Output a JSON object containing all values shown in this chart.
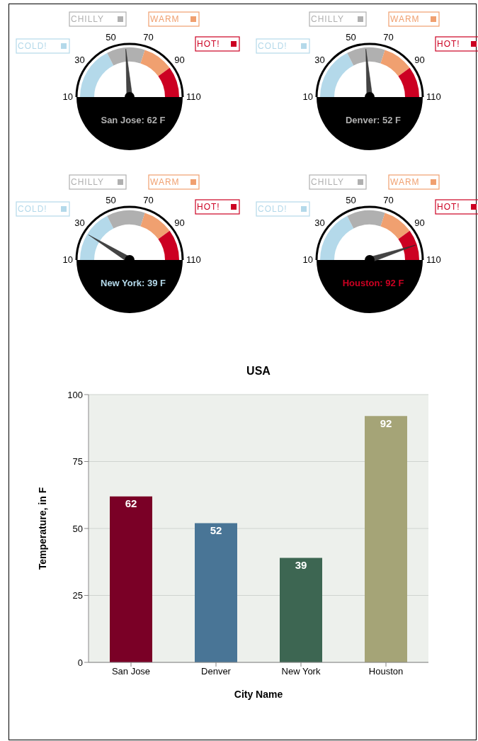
{
  "chart_data": [
    {
      "type": "donut",
      "title": "San Jose: 62 F",
      "categories": [
        "COLD!",
        "CHILLY",
        "WARM",
        "HOT!"
      ],
      "values": [
        35,
        25,
        20,
        20
      ],
      "colors": [
        "#b4d9ea",
        "#b0b0b0",
        "#f0a070",
        "#cc0022"
      ],
      "needle": "CHILLY",
      "legend": "top",
      "annotations": [
        "10",
        "30",
        "50",
        "70",
        "90",
        "110"
      ]
    },
    {
      "type": "donut",
      "title": "Denver: 52 F",
      "categories": [
        "COLD!",
        "CHILLY",
        "WARM",
        "HOT!"
      ],
      "values": [
        35,
        25,
        20,
        20
      ],
      "colors": [
        "#b4d9ea",
        "#b0b0b0",
        "#f0a070",
        "#cc0022"
      ],
      "needle": "CHILLY",
      "legend": "top",
      "annotations": [
        "10",
        "30",
        "50",
        "70",
        "90",
        "110"
      ]
    },
    {
      "type": "donut",
      "title": "New York: 39 F",
      "categories": [
        "COLD!",
        "CHILLY",
        "WARM",
        "HOT!"
      ],
      "values": [
        35,
        25,
        20,
        20
      ],
      "colors": [
        "#b4d9ea",
        "#b0b0b0",
        "#f0a070",
        "#cc0022"
      ],
      "needle": "COLD!",
      "legend": "top",
      "annotations": [
        "10",
        "30",
        "50",
        "70",
        "90",
        "110"
      ]
    },
    {
      "type": "donut",
      "title": "Houston: 92 F",
      "categories": [
        "COLD!",
        "CHILLY",
        "WARM",
        "HOT!"
      ],
      "values": [
        35,
        25,
        20,
        20
      ],
      "colors": [
        "#b4d9ea",
        "#b0b0b0",
        "#f0a070",
        "#cc0022"
      ],
      "needle": "HOT!",
      "legend": "top",
      "annotations": [
        "10",
        "30",
        "50",
        "70",
        "90",
        "110"
      ]
    },
    {
      "type": "bar",
      "title": "USA",
      "xlabel": "City Name",
      "ylabel": "Temperature, in F",
      "categories": [
        "San Jose",
        "Denver",
        "New York",
        "Houston"
      ],
      "values": [
        62,
        52,
        39,
        92
      ],
      "colors": [
        "#7a0026",
        "#497596",
        "#3d6652",
        "#a5a477"
      ],
      "ylim": [
        0,
        100
      ],
      "yticks": [
        0,
        25,
        50,
        75,
        100
      ],
      "grid": "y",
      "data_labels": true
    }
  ]
}
